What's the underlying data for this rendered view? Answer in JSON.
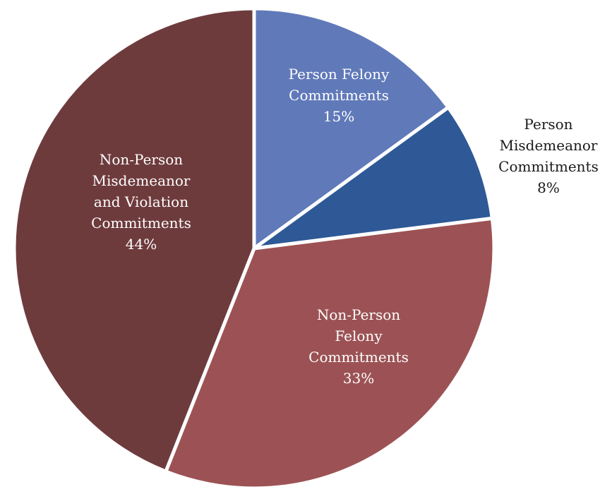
{
  "chart_data": {
    "type": "pie",
    "title": "",
    "slices": [
      {
        "name": "Person Felony Commitments",
        "value": 15,
        "label_lines": [
          "Person Felony",
          "Commitments",
          "15%"
        ],
        "color": "#6079b9",
        "label_color": "#ffffff",
        "label_inside": true
      },
      {
        "name": "Person Misdemeanor Commitments",
        "value": 8,
        "label_lines": [
          "Person",
          "Misdemeanor",
          "Commitments",
          "8%"
        ],
        "color": "#2e5996",
        "label_color": "#1a1a1a",
        "label_inside": false
      },
      {
        "name": "Non-Person Felony Commitments",
        "value": 33,
        "label_lines": [
          "Non-Person",
          "Felony",
          "Commitments",
          "33%"
        ],
        "color": "#9c5254",
        "label_color": "#ffffff",
        "label_inside": true
      },
      {
        "name": "Non-Person Misdemeanor and Violation Commitments",
        "value": 44,
        "label_lines": [
          "Non-Person",
          "Misdemeanor",
          "and Violation",
          "Commitments",
          "44%"
        ],
        "color": "#6e3b3d",
        "label_color": "#ffffff",
        "label_inside": true
      }
    ]
  }
}
